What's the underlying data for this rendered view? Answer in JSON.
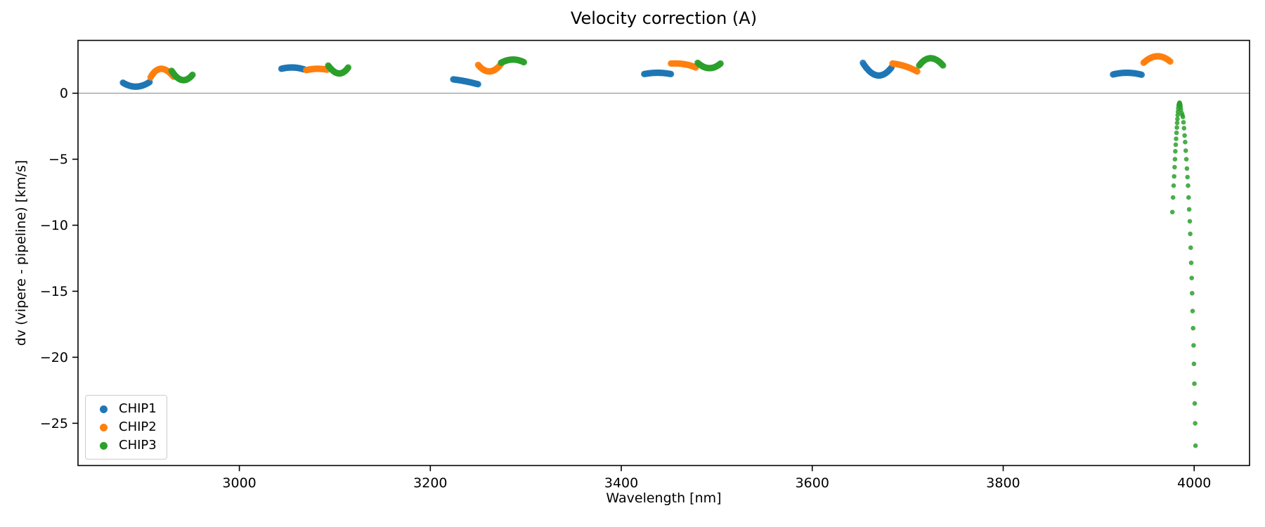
{
  "chart_data": {
    "type": "scatter",
    "title": "Velocity correction (A)",
    "xlabel": "Wavelength [nm]",
    "ylabel": "dv (vipere - pipeline) [km/s]",
    "xlim": [
      2831,
      4058
    ],
    "ylim": [
      -28.2,
      4.0
    ],
    "xticks": [
      3000,
      3200,
      3400,
      3600,
      3800,
      4000
    ],
    "yticks": [
      0,
      -5,
      -10,
      -15,
      -20,
      -25
    ],
    "grid": false,
    "zero_line": 0,
    "zero_line_color": "#999999",
    "legend_position": "lower left",
    "series": [
      {
        "name": "CHIP1",
        "color": "#1f77b4",
        "clusters": [
          [
            [
              2878,
              0.8
            ],
            [
              2892,
              0.5
            ],
            [
              2906,
              0.85
            ]
          ],
          [
            [
              3044,
              1.85
            ],
            [
              3056,
              1.95
            ],
            [
              3068,
              1.8
            ]
          ],
          [
            [
              3224,
              1.05
            ],
            [
              3237,
              0.9
            ],
            [
              3250,
              0.68
            ]
          ],
          [
            [
              3424,
              1.45
            ],
            [
              3438,
              1.55
            ],
            [
              3452,
              1.45
            ]
          ],
          [
            [
              3653,
              2.3
            ],
            [
              3668,
              1.35
            ],
            [
              3683,
              1.95
            ]
          ],
          [
            [
              3915,
              1.42
            ],
            [
              3930,
              1.55
            ],
            [
              3945,
              1.4
            ]
          ]
        ]
      },
      {
        "name": "CHIP2",
        "color": "#ff7f0e",
        "clusters": [
          [
            [
              2907,
              1.2
            ],
            [
              2918,
              1.85
            ],
            [
              2931,
              1.25
            ]
          ],
          [
            [
              3070,
              1.75
            ],
            [
              3081,
              1.85
            ],
            [
              3092,
              1.78
            ]
          ],
          [
            [
              3250,
              2.15
            ],
            [
              3262,
              1.65
            ],
            [
              3274,
              2.2
            ]
          ],
          [
            [
              3452,
              2.25
            ],
            [
              3466,
              2.2
            ],
            [
              3478,
              1.95
            ]
          ],
          [
            [
              3684,
              2.25
            ],
            [
              3697,
              2.05
            ],
            [
              3710,
              1.65
            ]
          ],
          [
            [
              3947,
              2.3
            ],
            [
              3961,
              2.8
            ],
            [
              3975,
              2.4
            ]
          ]
        ]
      },
      {
        "name": "CHIP3",
        "color": "#2ca02c",
        "clusters": [
          [
            [
              2929,
              1.7
            ],
            [
              2940,
              1.0
            ],
            [
              2951,
              1.4
            ]
          ],
          [
            [
              3093,
              2.1
            ],
            [
              3104,
              1.5
            ],
            [
              3114,
              1.95
            ]
          ],
          [
            [
              3274,
              2.3
            ],
            [
              3286,
              2.55
            ],
            [
              3298,
              2.35
            ]
          ],
          [
            [
              3480,
              2.3
            ],
            [
              3492,
              1.9
            ],
            [
              3504,
              2.25
            ]
          ],
          [
            [
              3712,
              2.1
            ],
            [
              3724,
              2.65
            ],
            [
              3737,
              2.1
            ]
          ]
        ],
        "points": [
          [
            3977.2,
            -9.0
          ],
          [
            3977.9,
            -7.9
          ],
          [
            3978.5,
            -7.0
          ],
          [
            3979.0,
            -6.3
          ],
          [
            3979.5,
            -5.6
          ],
          [
            3979.9,
            -5.0
          ],
          [
            3980.3,
            -4.4
          ],
          [
            3980.7,
            -3.9
          ],
          [
            3981.1,
            -3.45
          ],
          [
            3981.5,
            -3.0
          ],
          [
            3981.9,
            -2.6
          ],
          [
            3982.2,
            -2.25
          ],
          [
            3982.5,
            -1.95
          ],
          [
            3982.8,
            -1.65
          ],
          [
            3983.1,
            -1.4
          ],
          [
            3983.4,
            -1.15
          ],
          [
            3983.7,
            -0.95
          ],
          [
            3984.0,
            -0.85
          ],
          [
            3984.3,
            -0.78
          ],
          [
            3984.6,
            -0.72
          ],
          [
            3984.9,
            -0.75
          ],
          [
            3985.2,
            -0.82
          ],
          [
            3985.5,
            -0.9
          ],
          [
            3985.8,
            -1.05
          ],
          [
            3986.1,
            -1.25
          ],
          [
            3987.0,
            -1.5
          ],
          [
            3987.6,
            -1.65
          ],
          [
            3988.2,
            -1.8
          ],
          [
            3988.8,
            -2.2
          ],
          [
            3989.4,
            -2.65
          ],
          [
            3990.0,
            -3.2
          ],
          [
            3990.6,
            -3.7
          ],
          [
            3991.2,
            -4.35
          ],
          [
            3991.8,
            -5.0
          ],
          [
            3992.4,
            -5.7
          ],
          [
            3993.0,
            -6.35
          ],
          [
            3993.6,
            -7.0
          ],
          [
            3994.2,
            -7.9
          ],
          [
            3994.8,
            -8.8
          ],
          [
            3995.4,
            -9.7
          ],
          [
            3995.9,
            -10.65
          ],
          [
            3996.4,
            -11.7
          ],
          [
            3996.9,
            -12.85
          ],
          [
            3997.4,
            -14.0
          ],
          [
            3997.9,
            -15.15
          ],
          [
            3998.4,
            -16.5
          ],
          [
            3998.9,
            -17.8
          ],
          [
            3999.4,
            -19.1
          ],
          [
            3999.8,
            -20.5
          ],
          [
            4000.2,
            -22.0
          ],
          [
            4000.6,
            -23.5
          ],
          [
            4001.0,
            -25.0
          ],
          [
            4001.4,
            -26.7
          ]
        ]
      }
    ]
  }
}
